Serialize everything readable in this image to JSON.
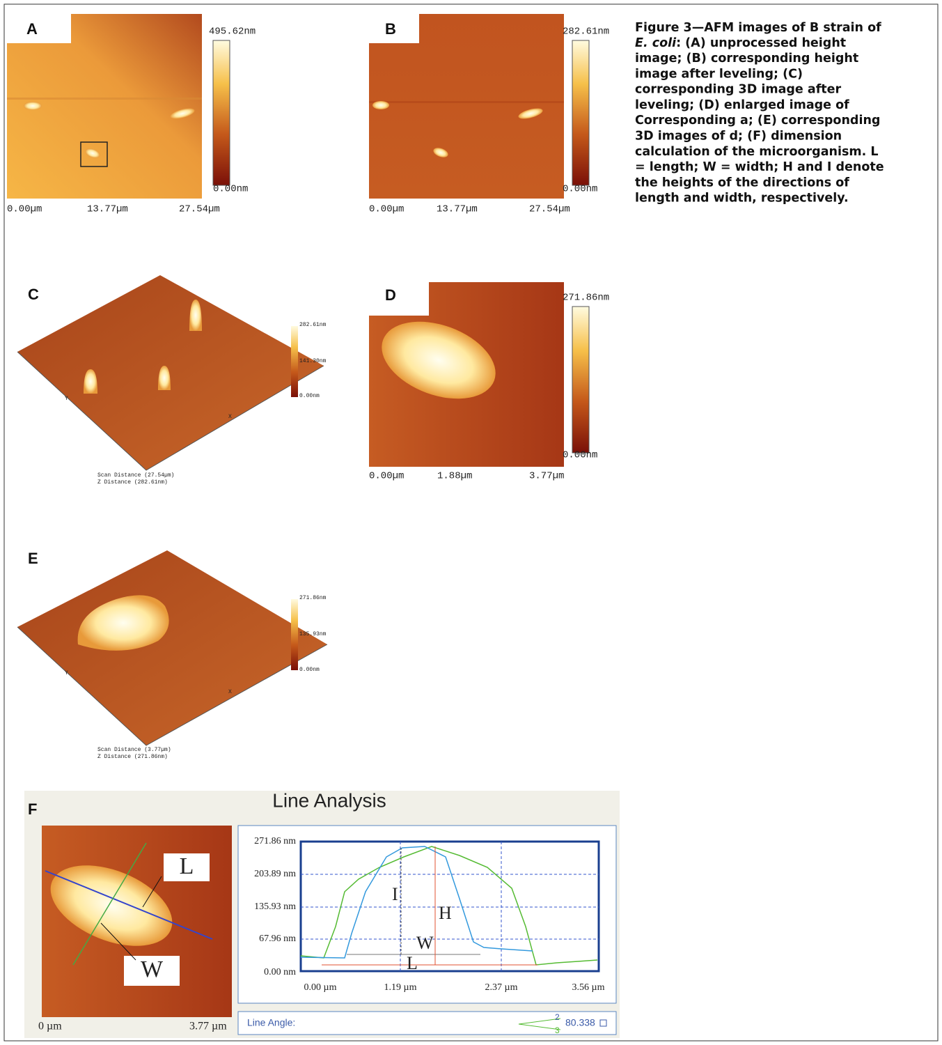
{
  "panels": {
    "a": {
      "label": "A",
      "scale_max": "495.62nm",
      "scale_min": "0.00nm",
      "x_labels": [
        "0.00µm",
        "13.77µm",
        "27.54µm"
      ]
    },
    "b": {
      "label": "B",
      "scale_max": "282.61nm",
      "scale_min": "0.00nm",
      "x_labels": [
        "0.00µm",
        "13.77µm",
        "27.54µm"
      ]
    },
    "c": {
      "label": "C",
      "scale_labels": [
        "282.61nm",
        "141.30nm",
        "0.00nm"
      ],
      "axis_y": "Y",
      "axis_x": "X",
      "scan_distance": "Scan Distance (27.54µm)",
      "z_distance": "Z Distance (282.61nm)"
    },
    "d": {
      "label": "D",
      "scale_max": "271.86nm",
      "scale_min": "0.00nm",
      "x_labels": [
        "0.00µm",
        "1.88µm",
        "3.77µm"
      ]
    },
    "e": {
      "label": "E",
      "scale_labels": [
        "271.86nm",
        "135.93nm",
        "0.00nm"
      ],
      "axis_y": "Y",
      "axis_x": "X",
      "scan_distance": "Scan Distance (3.77µm)",
      "z_distance": "Z Distance (271.86nm)"
    },
    "f": {
      "label": "F",
      "title": "Line Analysis",
      "image_length": "L",
      "image_width": "W",
      "image_x_labels": [
        "0 µm",
        "3.77 µm"
      ],
      "y_labels": [
        "271.86 nm",
        "203.89 nm",
        "135.93 nm",
        "67.96 nm",
        "0.00 nm"
      ],
      "x_labels": [
        "0.00 µm",
        "1.19 µm",
        "2.37 µm",
        "3.56 µm"
      ],
      "profile_labels": [
        "I",
        "H",
        "W",
        "L"
      ],
      "line_angle_label": "Line Angle:",
      "line_angle_markers": [
        "2",
        "3"
      ],
      "line_angle_value": "80.338"
    }
  },
  "caption": {
    "line_1": "Figure 3—AFM images of B strain of",
    "species": "E. coli",
    "line_2": ": (A) unprocessed height",
    "lines": [
      "image; (B) corresponding height",
      "image after leveling; (C)",
      "corresponding 3D image after",
      "leveling; (D) enlarged image of",
      "Corresponding a; (E) corresponding",
      "3D images of d; (F) dimension",
      "calculation of the microorganism. L",
      "= length; W = width; H and I denote",
      "the heights of the directions of",
      "length and width, respectively."
    ]
  }
}
